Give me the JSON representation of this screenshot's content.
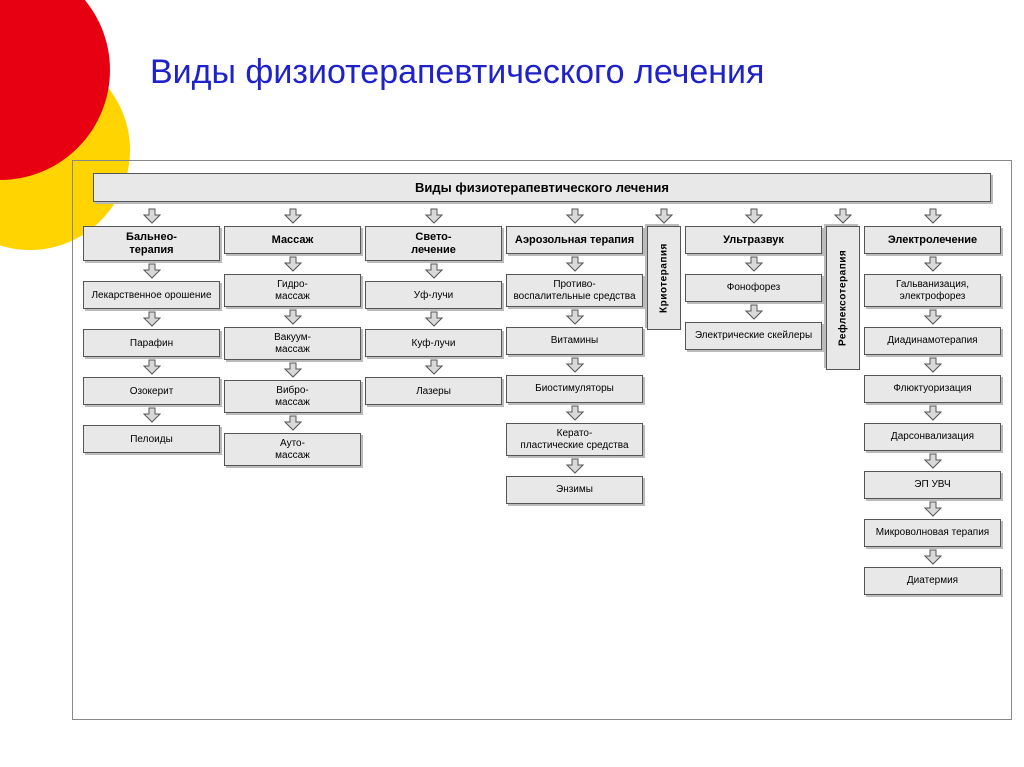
{
  "slide": {
    "title": "Виды физиотерапевтического лечения",
    "title_color": "#1f22c9",
    "title_fontsize": 34,
    "decor": {
      "red": "#e60012",
      "yellow": "#ffd400"
    }
  },
  "diagram": {
    "type": "tree",
    "header": "Виды  физиотерапевтического  лечения",
    "box_bg": "#e8e8e8",
    "box_border": "#555555",
    "box_shadow": "#bbbbbb",
    "arrow_fill": "#d9d9d9",
    "arrow_stroke": "#555555",
    "label_fontsize": 10,
    "header_fontsize": 13,
    "columns": [
      {
        "key": "balneotherapy",
        "head": "Бальнео-\nтерапия",
        "items": [
          "Лекарственное орошение",
          "Парафин",
          "Озокерит",
          "Пелоиды"
        ]
      },
      {
        "key": "massage",
        "head": "Массаж",
        "items": [
          "Гидро-\nмассаж",
          "Вакуум-\nмассаж",
          "Вибро-\nмассаж",
          "Ауто-\nмассаж"
        ]
      },
      {
        "key": "light",
        "head": "Свето-\nлечение",
        "items": [
          "Уф-лучи",
          "Куф-лучи",
          "Лазеры"
        ]
      },
      {
        "key": "aerosol",
        "head": "Аэрозольная терапия",
        "items": [
          "Противо-\nвоспалительные средства",
          "Витамины",
          "Биостимуляторы",
          "Керато-\nпластические средства",
          "Энзимы"
        ]
      },
      {
        "key": "cryo",
        "vertical": true,
        "head": "Криотерапия",
        "items": []
      },
      {
        "key": "ultrasound",
        "head": "Ультразвук",
        "items": [
          "Фонофорез",
          "Электрические скейлеры"
        ]
      },
      {
        "key": "reflex",
        "vertical": true,
        "head": "Рефлексотерапия",
        "items": []
      },
      {
        "key": "electro",
        "head": "Электролечение",
        "items": [
          "Гальванизация, электрофорез",
          "Диадинамотерапия",
          "Флюктуоризация",
          "Дарсонвализация",
          "ЭП УВЧ",
          "Микроволновая терапия",
          "Диатермия"
        ]
      }
    ]
  }
}
